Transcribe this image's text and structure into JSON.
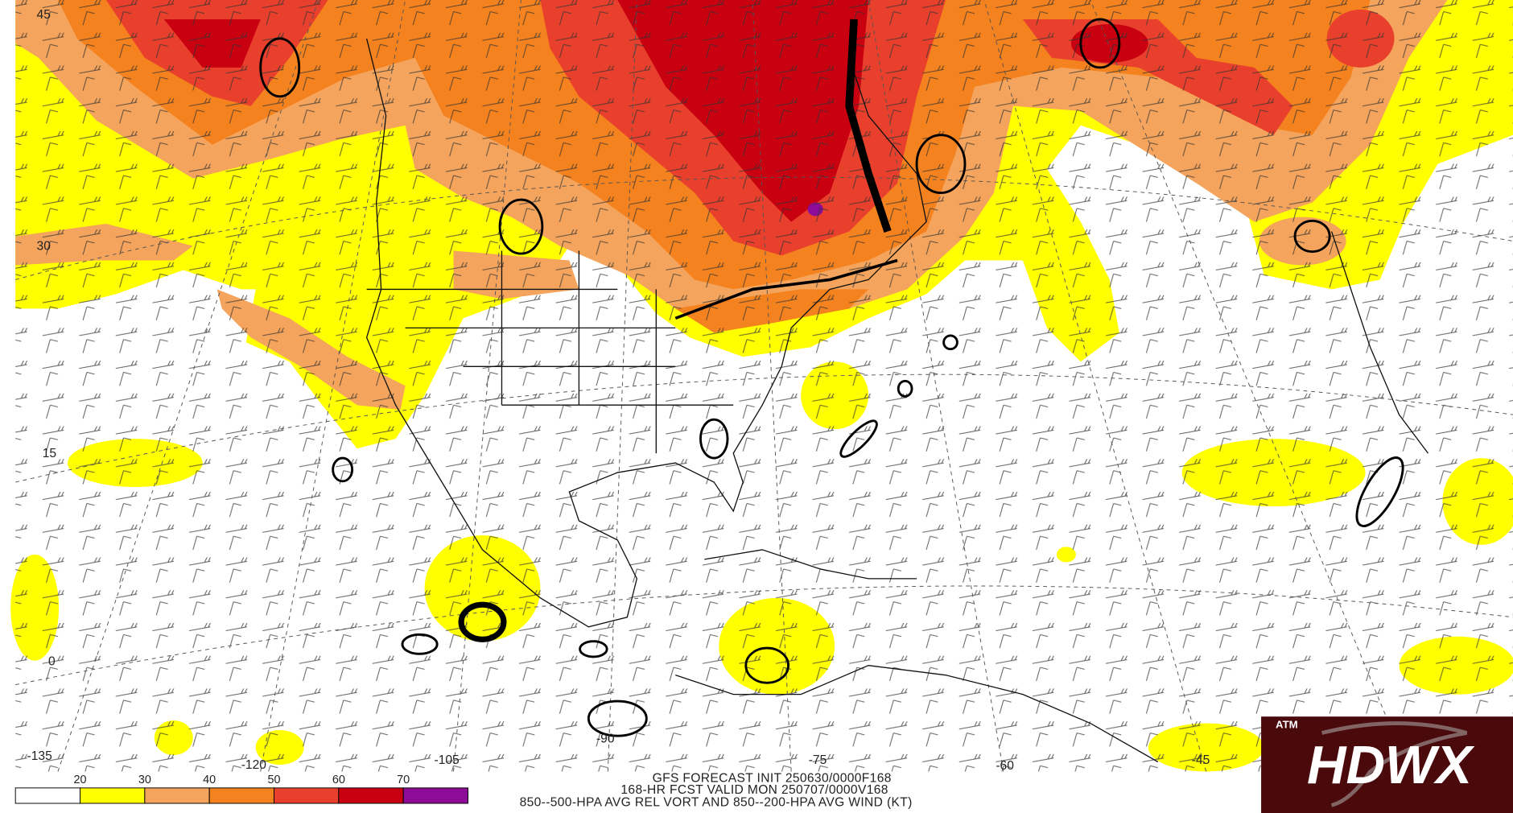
{
  "map": {
    "lat_labels": [
      "45",
      "30",
      "15",
      "0"
    ],
    "lon_labels": [
      "-135",
      "-120",
      "-105",
      "-90",
      "-75",
      "-60",
      "-45"
    ],
    "colorbar": {
      "labels": [
        20,
        30,
        40,
        50,
        60,
        70
      ],
      "colors": [
        "#ffffff",
        "#ffff00",
        "#f4a45c",
        "#f4821e",
        "#e8402c",
        "#c80010",
        "#8c0c98"
      ]
    },
    "caption": [
      "GFS FORECAST INIT 250630/0000F168",
      "168-HR FCST VALID MON 250707/0000V168",
      "850--500-HPA AVG REL VORT AND 850--200-HPA AVG WIND (KT)"
    ],
    "logo": {
      "mark": "ATM",
      "text": "HDWX"
    }
  }
}
